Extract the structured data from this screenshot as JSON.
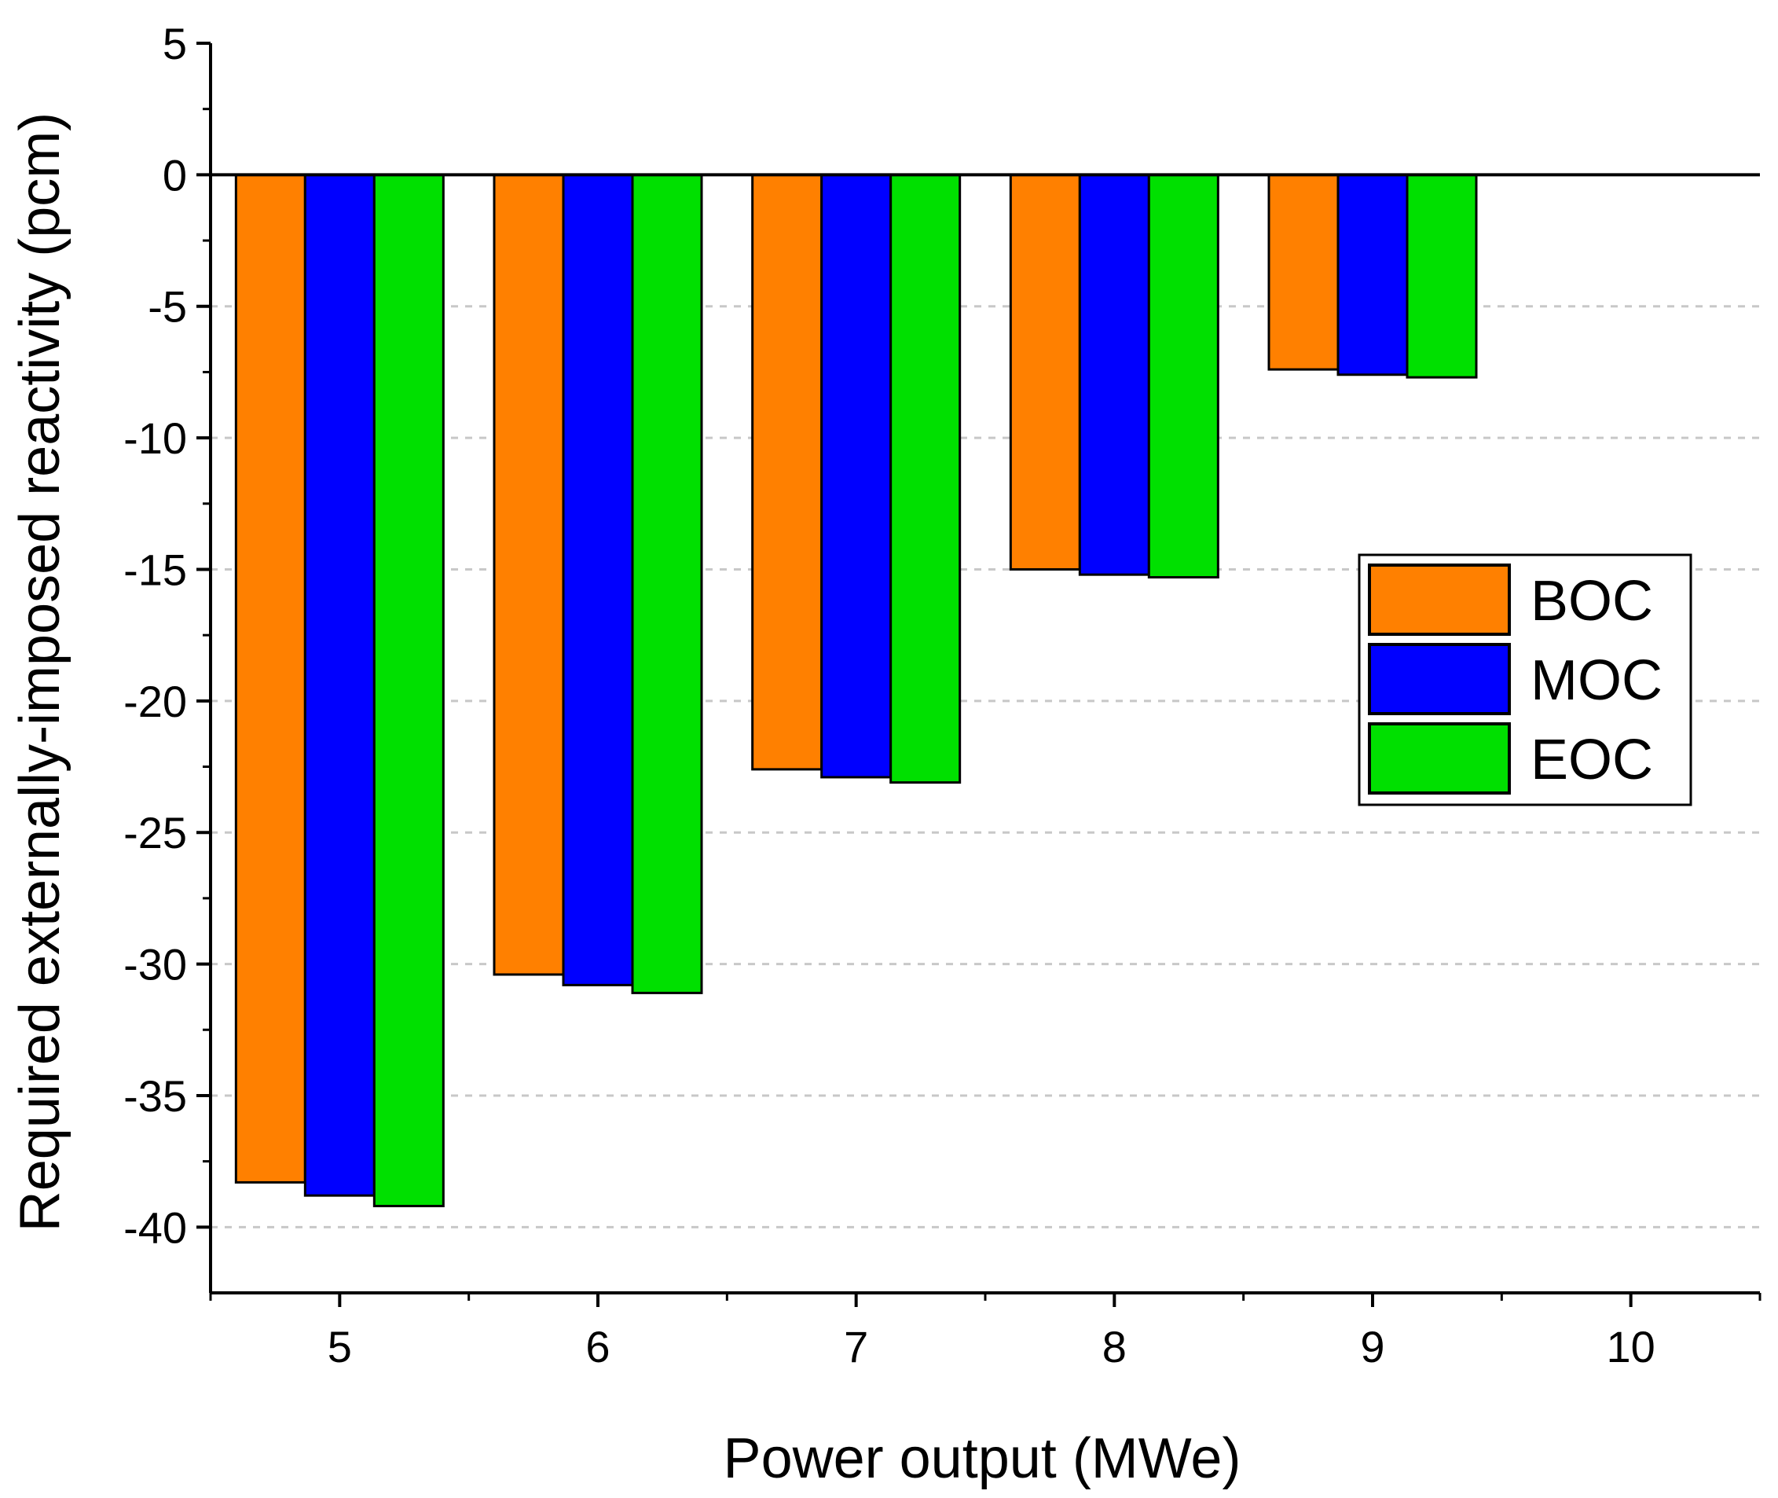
{
  "chart_data": {
    "type": "bar",
    "title": "",
    "xlabel": "Power output (MWe)",
    "ylabel": "Required externally-imposed reactivity (pcm)",
    "x_ticks": [
      5,
      6,
      7,
      8,
      9,
      10
    ],
    "x_tick_labels": [
      "5",
      "6",
      "7",
      "8",
      "9",
      "10"
    ],
    "xlim": [
      4.5,
      10.5
    ],
    "ylim": [
      -42.5,
      5
    ],
    "y_ticks": [
      5,
      0,
      -5,
      -10,
      -15,
      -20,
      -25,
      -30,
      -35,
      -40
    ],
    "y_tick_labels": [
      "5",
      "0",
      "-5",
      "-10",
      "-15",
      "-20",
      "-25",
      "-30",
      "-35",
      "-40"
    ],
    "grid": "dashed horizontal gridlines",
    "legend_position": "right-middle",
    "categories": [
      "5",
      "6",
      "7",
      "8",
      "9"
    ],
    "series": [
      {
        "name": "BOC",
        "color": "#FF8000",
        "values": [
          -38.3,
          -30.4,
          -22.6,
          -15.0,
          -7.4
        ]
      },
      {
        "name": "MOC",
        "color": "#0000FF",
        "values": [
          -38.8,
          -30.8,
          -22.9,
          -15.2,
          -7.6
        ]
      },
      {
        "name": "EOC",
        "color": "#00E000",
        "values": [
          -39.2,
          -31.1,
          -23.1,
          -15.3,
          -7.7
        ]
      }
    ]
  }
}
